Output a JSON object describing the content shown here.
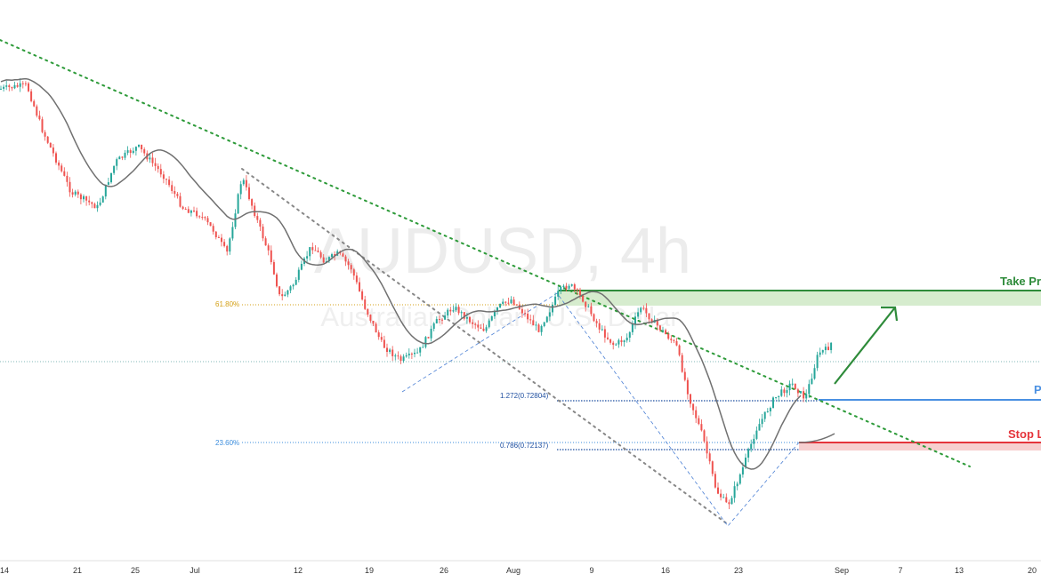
{
  "watermark": {
    "symbol": "AUDUSD, 4h",
    "description": "Australian Dollar / U.S. Dollar"
  },
  "levels": {
    "take_profit": {
      "label": "Take Profit",
      "color": "#2e8b3a"
    },
    "pivot": {
      "label": "Pivot",
      "color": "#4a90e2"
    },
    "stop_loss": {
      "label": "Stop Loss",
      "color": "#e5343b"
    }
  },
  "fib_labels": {
    "left_618": "61.80%",
    "left_236": "23.60%",
    "ext_1272": "1.272(0.72804)",
    "ext_0786": "0.786(0.72137)"
  },
  "colors": {
    "up_candle": "#26a69a",
    "down_candle": "#ef5350",
    "moving_average": "#707070",
    "trendline": "#2e9b3a",
    "channel_line": "#888888",
    "fib_gold": "#d4a017",
    "fib_blue": "#3b7dd8",
    "arrow": "#2e8b3a"
  },
  "icons": {
    "projection": "arrow-up-right-icon"
  },
  "chart_data": {
    "type": "candlestick",
    "title": "AUDUSD, 4h",
    "subtitle": "Australian Dollar / U.S. Dollar",
    "x_tick_labels": [
      "14",
      "21",
      "25",
      "Jul",
      "12",
      "19",
      "26",
      "Aug",
      "9",
      "16",
      "23",
      "Sep",
      "7",
      "13",
      "20"
    ],
    "series": [
      {
        "name": "AUDUSD",
        "type": "candlestick",
        "close_path": [
          [
            "14",
            0.7655
          ],
          [
            "17",
            0.766
          ],
          [
            "18",
            0.76
          ],
          [
            "21",
            0.752
          ],
          [
            "22",
            0.75
          ],
          [
            "23",
            0.756
          ],
          [
            "25",
            0.758
          ],
          [
            "28",
            0.754
          ],
          [
            "29",
            0.75
          ],
          [
            "30",
            0.749
          ],
          [
            "Jul 1",
            0.747
          ],
          [
            "Jul 2",
            0.744
          ],
          [
            "Jul 5",
            0.754
          ],
          [
            "Jul 6",
            0.748
          ],
          [
            "Jul 7",
            0.743
          ],
          [
            "Jul 8",
            0.738
          ],
          [
            "Jul 9",
            0.74
          ],
          [
            "12",
            0.745
          ],
          [
            "13",
            0.743
          ],
          [
            "14",
            0.744
          ],
          [
            "15",
            0.742
          ],
          [
            "16",
            0.737
          ],
          [
            "19",
            0.732
          ],
          [
            "20",
            0.73
          ],
          [
            "21",
            0.731
          ],
          [
            "22",
            0.735
          ],
          [
            "23",
            0.737
          ],
          [
            "26",
            0.735
          ],
          [
            "27",
            0.734
          ],
          [
            "28",
            0.737
          ],
          [
            "29",
            0.738
          ],
          [
            "30",
            0.736
          ],
          [
            "Aug 2",
            0.734
          ],
          [
            "Aug 3",
            0.737
          ],
          [
            "Aug 4",
            0.739
          ],
          [
            "Aug 5",
            0.74
          ],
          [
            "Aug 6",
            0.738
          ],
          [
            "9",
            0.734
          ],
          [
            "10",
            0.732
          ],
          [
            "11",
            0.733
          ],
          [
            "12",
            0.737
          ],
          [
            "13",
            0.735
          ],
          [
            "16",
            0.732
          ],
          [
            "17",
            0.725
          ],
          [
            "18",
            0.72
          ],
          [
            "19",
            0.713
          ],
          [
            "20",
            0.711
          ],
          [
            "23",
            0.716
          ],
          [
            "24",
            0.721
          ],
          [
            "25",
            0.725
          ],
          [
            "26",
            0.727
          ],
          [
            "27",
            0.725
          ],
          [
            "30",
            0.731
          ],
          [
            "31",
            0.7315
          ],
          [
            "Sep 1",
            0.733
          ]
        ]
      },
      {
        "name": "Moving Average",
        "type": "line",
        "color": "#707070"
      }
    ],
    "fibonacci_levels": [
      {
        "label": "61.80%"
      },
      {
        "label": "23.60%"
      },
      {
        "label": "1.272(0.72804)",
        "value": 0.72804
      },
      {
        "label": "0.786(0.72137)",
        "value": 0.72137
      }
    ],
    "trade_levels": [
      {
        "name": "Take Profit"
      },
      {
        "name": "Pivot"
      },
      {
        "name": "Stop Loss"
      }
    ],
    "annotations": [
      "Take Profit",
      "Pivot",
      "Stop Loss"
    ],
    "grid": false,
    "legend": "none"
  }
}
